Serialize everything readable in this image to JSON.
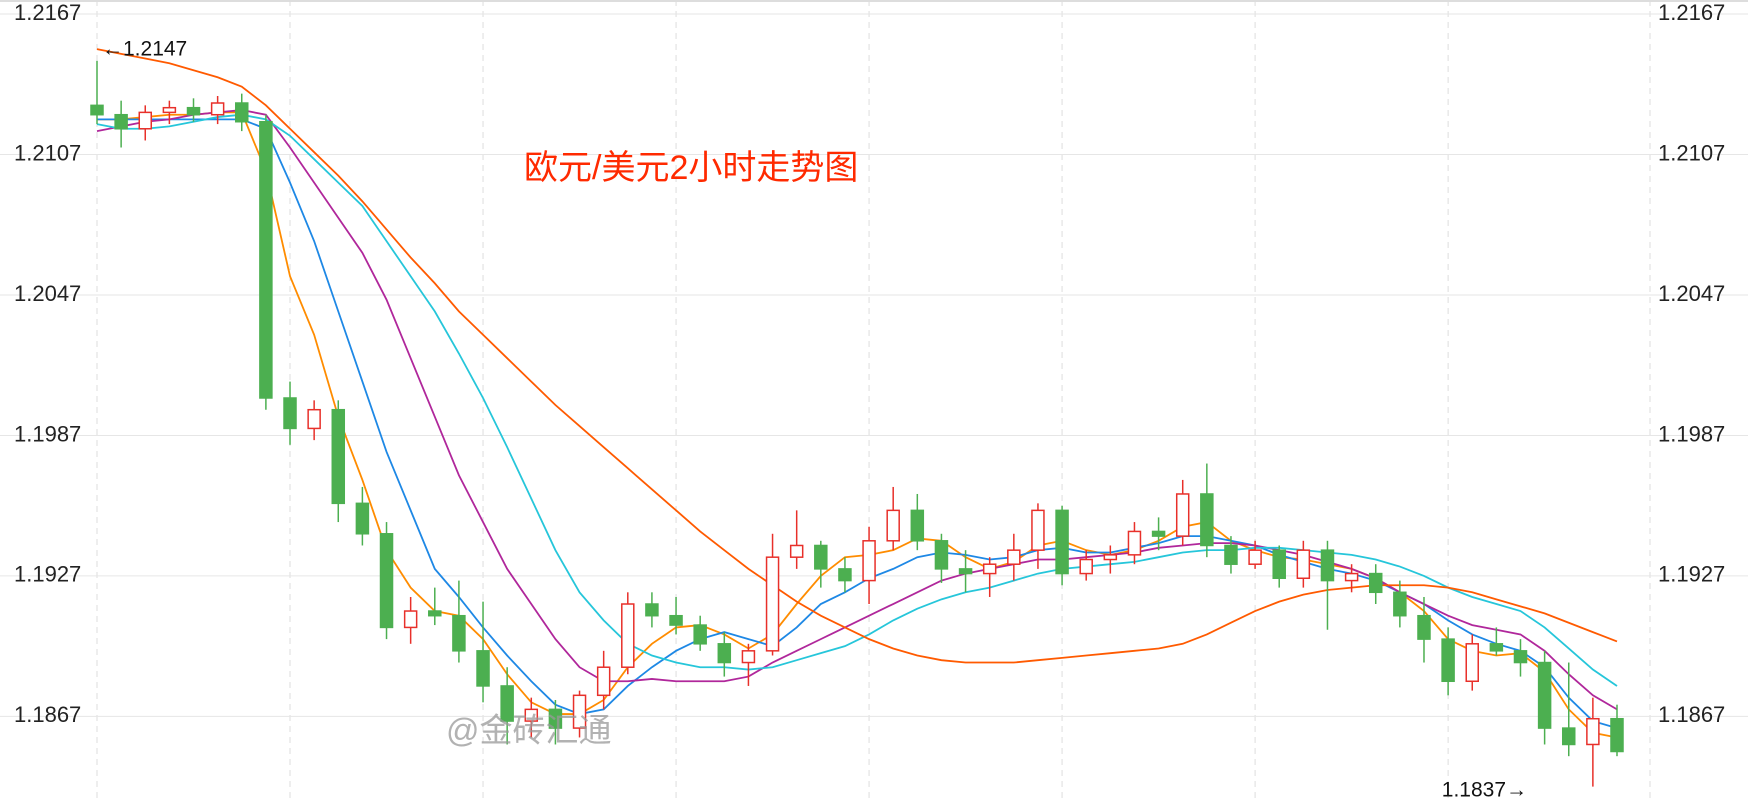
{
  "chart_data": {
    "type": "candlestick",
    "title": "欧元/美元2小时走势图",
    "annotations": [
      "←1.2147",
      "1.1837→"
    ],
    "watermark": "@金砖汇通",
    "ylim": [
      1.183,
      1.2173
    ],
    "yticks": [
      1.2167,
      1.2107,
      1.2047,
      1.1987,
      1.1927,
      1.1867
    ],
    "grid": true,
    "up_color": "#e8302a",
    "down_color": "#4caf50",
    "open": [
      1.2128,
      1.2124,
      1.2118,
      1.2125,
      1.2127,
      1.2124,
      1.2129,
      1.2121,
      1.2003,
      1.199,
      1.1998,
      1.1958,
      1.1945,
      1.1905,
      1.1912,
      1.191,
      1.1895,
      1.188,
      1.1865,
      1.187,
      1.1862,
      1.1876,
      1.1888,
      1.1915,
      1.191,
      1.1906,
      1.1898,
      1.189,
      1.1895,
      1.1935,
      1.194,
      1.193,
      1.1925,
      1.1942,
      1.1955,
      1.1942,
      1.193,
      1.1928,
      1.1932,
      1.1938,
      1.1955,
      1.1928,
      1.1934,
      1.1936,
      1.1946,
      1.1944,
      1.1962,
      1.194,
      1.1932,
      1.1938,
      1.1926,
      1.1938,
      1.1925,
      1.1928,
      1.192,
      1.191,
      1.19,
      1.1882,
      1.1898,
      1.1895,
      1.189,
      1.1862,
      1.1855,
      1.1866
    ],
    "high": [
      1.2147,
      1.213,
      1.2128,
      1.213,
      1.2131,
      1.2132,
      1.2133,
      1.2124,
      1.201,
      1.2002,
      1.2002,
      1.1965,
      1.195,
      1.1918,
      1.1922,
      1.1925,
      1.1916,
      1.1888,
      1.1875,
      1.1874,
      1.1878,
      1.1895,
      1.192,
      1.192,
      1.1918,
      1.191,
      1.1903,
      1.1898,
      1.1945,
      1.1955,
      1.1942,
      1.1935,
      1.1948,
      1.1965,
      1.1962,
      1.1945,
      1.1938,
      1.1935,
      1.1945,
      1.1958,
      1.1957,
      1.1938,
      1.194,
      1.195,
      1.1952,
      1.1968,
      1.1975,
      1.1944,
      1.1942,
      1.194,
      1.1942,
      1.1942,
      1.1932,
      1.1932,
      1.1925,
      1.1918,
      1.1905,
      1.1902,
      1.1905,
      1.19,
      1.1895,
      1.189,
      1.1875,
      1.1872
    ],
    "low": [
      1.212,
      1.211,
      1.2113,
      1.212,
      1.2121,
      1.212,
      1.2117,
      1.1998,
      1.1983,
      1.1985,
      1.195,
      1.194,
      1.19,
      1.1898,
      1.1906,
      1.189,
      1.1873,
      1.1855,
      1.1858,
      1.1855,
      1.1858,
      1.187,
      1.1885,
      1.1905,
      1.1902,
      1.1895,
      1.1884,
      1.188,
      1.1893,
      1.193,
      1.1922,
      1.192,
      1.1915,
      1.1938,
      1.1938,
      1.1924,
      1.192,
      1.1918,
      1.1925,
      1.193,
      1.1923,
      1.1925,
      1.1928,
      1.1932,
      1.1938,
      1.194,
      1.1935,
      1.1928,
      1.193,
      1.1922,
      1.1922,
      1.1904,
      1.192,
      1.1915,
      1.1905,
      1.189,
      1.1876,
      1.1878,
      1.1893,
      1.1884,
      1.1855,
      1.185,
      1.1837,
      1.185
    ],
    "close": [
      1.2124,
      1.2118,
      1.2125,
      1.2127,
      1.2124,
      1.2129,
      1.2121,
      1.2003,
      1.199,
      1.1998,
      1.1958,
      1.1945,
      1.1905,
      1.1912,
      1.191,
      1.1895,
      1.188,
      1.1865,
      1.187,
      1.1862,
      1.1876,
      1.1888,
      1.1915,
      1.191,
      1.1906,
      1.1898,
      1.189,
      1.1895,
      1.1935,
      1.194,
      1.193,
      1.1925,
      1.1942,
      1.1955,
      1.1942,
      1.193,
      1.1928,
      1.1932,
      1.1938,
      1.1955,
      1.1928,
      1.1934,
      1.1936,
      1.1946,
      1.1944,
      1.1962,
      1.194,
      1.1932,
      1.1938,
      1.1926,
      1.1938,
      1.1925,
      1.1928,
      1.192,
      1.191,
      1.19,
      1.1882,
      1.1898,
      1.1895,
      1.189,
      1.1862,
      1.1855,
      1.1866,
      1.1852
    ],
    "series": [
      {
        "color": "#ff8c00",
        "values": [
          1.2122,
          1.2122,
          1.2123,
          1.2124,
          1.2124,
          1.2125,
          1.2125,
          1.21,
          1.2055,
          1.203,
          1.1995,
          1.1968,
          1.1938,
          1.1922,
          1.1912,
          1.191,
          1.19,
          1.1885,
          1.1873,
          1.1868,
          1.1868,
          1.1874,
          1.1888,
          1.1898,
          1.1905,
          1.1906,
          1.1902,
          1.1896,
          1.1902,
          1.1915,
          1.1927,
          1.1935,
          1.1936,
          1.1938,
          1.1943,
          1.1942,
          1.1935,
          1.193,
          1.1933,
          1.194,
          1.1942,
          1.1938,
          1.1936,
          1.1938,
          1.1942,
          1.1948,
          1.195,
          1.1942,
          1.1938,
          1.1935,
          1.1934,
          1.1932,
          1.193,
          1.1926,
          1.192,
          1.1912,
          1.19,
          1.1895,
          1.1893,
          1.1894,
          1.1886,
          1.187,
          1.186,
          1.1858
        ]
      },
      {
        "color": "#1e88e5",
        "values": [
          1.2122,
          1.2122,
          1.2122,
          1.2122,
          1.2122,
          1.2122,
          1.2122,
          1.2118,
          1.2095,
          1.207,
          1.204,
          1.201,
          1.198,
          1.1955,
          1.193,
          1.1918,
          1.1905,
          1.1893,
          1.1882,
          1.1872,
          1.1868,
          1.187,
          1.188,
          1.1888,
          1.1895,
          1.19,
          1.1903,
          1.19,
          1.1897,
          1.1905,
          1.1915,
          1.192,
          1.1926,
          1.193,
          1.1935,
          1.1937,
          1.1936,
          1.1934,
          1.1935,
          1.1938,
          1.1939,
          1.1937,
          1.1937,
          1.1939,
          1.1941,
          1.1944,
          1.1944,
          1.1942,
          1.194,
          1.1936,
          1.1933,
          1.193,
          1.1928,
          1.1925,
          1.192,
          1.1915,
          1.1908,
          1.1902,
          1.1898,
          1.1895,
          1.1888,
          1.1875,
          1.1865,
          1.1862
        ]
      },
      {
        "color": "#b0279b",
        "values": [
          1.2117,
          1.2119,
          1.2121,
          1.2122,
          1.2124,
          1.2125,
          1.2126,
          1.2124,
          1.211,
          1.2095,
          1.208,
          1.2065,
          1.2045,
          1.202,
          1.1995,
          1.197,
          1.195,
          1.193,
          1.1915,
          1.19,
          1.1888,
          1.1882,
          1.1882,
          1.1883,
          1.1882,
          1.1882,
          1.1882,
          1.1884,
          1.189,
          1.1895,
          1.19,
          1.1905,
          1.191,
          1.1915,
          1.192,
          1.1925,
          1.1928,
          1.193,
          1.1932,
          1.1934,
          1.1934,
          1.1935,
          1.1936,
          1.1937,
          1.1939,
          1.194,
          1.1941,
          1.1941,
          1.194,
          1.1938,
          1.1936,
          1.1933,
          1.193,
          1.1926,
          1.192,
          1.1915,
          1.191,
          1.1906,
          1.1904,
          1.1902,
          1.1895,
          1.1885,
          1.1876,
          1.187
        ]
      },
      {
        "color": "#26c6da",
        "values": [
          1.212,
          1.2118,
          1.2118,
          1.2119,
          1.2121,
          1.2123,
          1.2124,
          1.2122,
          1.2115,
          1.2105,
          1.2095,
          1.2085,
          1.207,
          1.2055,
          1.204,
          1.2022,
          1.2003,
          1.1982,
          1.196,
          1.1938,
          1.192,
          1.1908,
          1.1898,
          1.1893,
          1.189,
          1.1888,
          1.1888,
          1.1887,
          1.1888,
          1.1891,
          1.1894,
          1.1897,
          1.1902,
          1.1908,
          1.1913,
          1.1917,
          1.192,
          1.1922,
          1.1925,
          1.1928,
          1.193,
          1.1931,
          1.1932,
          1.1933,
          1.1935,
          1.1937,
          1.1938,
          1.1938,
          1.1939,
          1.1939,
          1.1938,
          1.1937,
          1.1936,
          1.1934,
          1.1931,
          1.1927,
          1.1922,
          1.1918,
          1.1915,
          1.1912,
          1.1905,
          1.1896,
          1.1887,
          1.188
        ]
      },
      {
        "color": "#ff5a00",
        "values": [
          1.2152,
          1.215,
          1.2148,
          1.2146,
          1.2143,
          1.214,
          1.2136,
          1.2128,
          1.2118,
          1.2108,
          1.2098,
          1.2087,
          1.2075,
          1.2063,
          1.2052,
          1.204,
          1.203,
          1.202,
          1.201,
          1.2,
          1.1991,
          1.1982,
          1.1973,
          1.1964,
          1.1955,
          1.1946,
          1.1938,
          1.193,
          1.1923,
          1.1916,
          1.191,
          1.1905,
          1.19,
          1.1896,
          1.1893,
          1.1891,
          1.189,
          1.189,
          1.189,
          1.1891,
          1.1892,
          1.1893,
          1.1894,
          1.1895,
          1.1896,
          1.1898,
          1.1902,
          1.1907,
          1.1912,
          1.1916,
          1.1919,
          1.1921,
          1.1922,
          1.1923,
          1.1923,
          1.1923,
          1.1922,
          1.192,
          1.1917,
          1.1914,
          1.1911,
          1.1907,
          1.1903,
          1.1899
        ]
      }
    ]
  }
}
